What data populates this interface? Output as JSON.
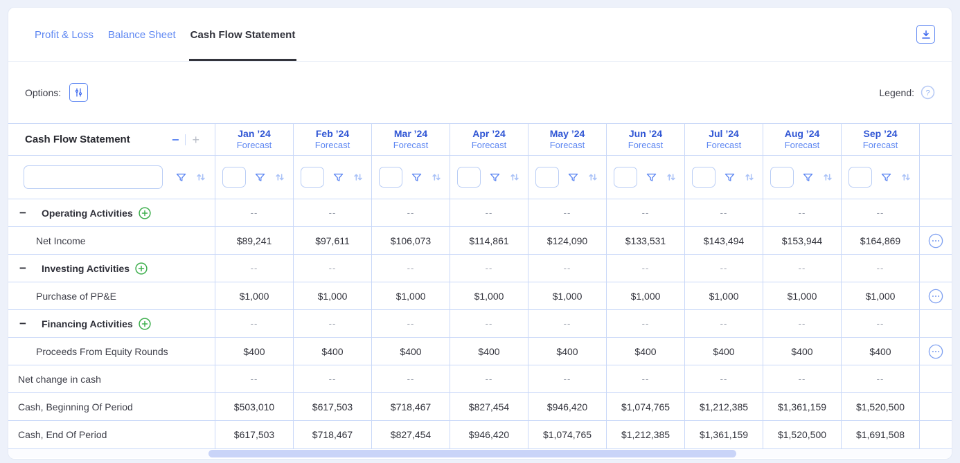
{
  "tabs": [
    {
      "label": "Profit & Loss",
      "active": false
    },
    {
      "label": "Balance Sheet",
      "active": false
    },
    {
      "label": "Cash Flow Statement",
      "active": true
    }
  ],
  "toolbar": {
    "options_label": "Options:",
    "legend_label": "Legend:"
  },
  "icons": {
    "export": "download-icon",
    "options": "sliders-icon",
    "legend_help": "question-mark-icon",
    "filter": "funnel-icon",
    "sort": "sort-arrows-icon",
    "row_actions": "ellipsis-icon",
    "add_row": "plus-circle-icon",
    "collapse_section": "minus-icon"
  },
  "table": {
    "title": "Cash Flow Statement",
    "collapse_label": "−",
    "expand_label": "+",
    "scenario_label": "Forecast",
    "empty_value": "--",
    "columns": [
      "Jan ’24",
      "Feb ’24",
      "Mar ’24",
      "Apr ’24",
      "May ’24",
      "Jun ’24",
      "Jul ’24",
      "Aug ’24",
      "Sep ’24"
    ],
    "rows": [
      {
        "label": "Operating Activities",
        "type": "section",
        "has_actions": false,
        "values": [
          "--",
          "--",
          "--",
          "--",
          "--",
          "--",
          "--",
          "--",
          "--"
        ]
      },
      {
        "label": "Net Income",
        "type": "detail",
        "has_actions": true,
        "values": [
          "$89,241",
          "$97,611",
          "$106,073",
          "$114,861",
          "$124,090",
          "$133,531",
          "$143,494",
          "$153,944",
          "$164,869"
        ]
      },
      {
        "label": "Investing Activities",
        "type": "section",
        "has_actions": false,
        "values": [
          "--",
          "--",
          "--",
          "--",
          "--",
          "--",
          "--",
          "--",
          "--"
        ]
      },
      {
        "label": "Purchase of PP&E",
        "type": "detail",
        "has_actions": true,
        "values": [
          "$1,000",
          "$1,000",
          "$1,000",
          "$1,000",
          "$1,000",
          "$1,000",
          "$1,000",
          "$1,000",
          "$1,000"
        ]
      },
      {
        "label": "Financing Activities",
        "type": "section",
        "has_actions": false,
        "values": [
          "--",
          "--",
          "--",
          "--",
          "--",
          "--",
          "--",
          "--",
          "--"
        ]
      },
      {
        "label": "Proceeds From Equity Rounds",
        "type": "detail",
        "has_actions": true,
        "values": [
          "$400",
          "$400",
          "$400",
          "$400",
          "$400",
          "$400",
          "$400",
          "$400",
          "$400"
        ]
      },
      {
        "label": "Net change in cash",
        "type": "summary",
        "has_actions": false,
        "values": [
          "--",
          "--",
          "--",
          "--",
          "--",
          "--",
          "--",
          "--",
          "--"
        ]
      },
      {
        "label": "Cash, Beginning Of Period",
        "type": "summary",
        "has_actions": false,
        "values": [
          "$503,010",
          "$617,503",
          "$718,467",
          "$827,454",
          "$946,420",
          "$1,074,765",
          "$1,212,385",
          "$1,361,159",
          "$1,520,500"
        ]
      },
      {
        "label": "Cash, End Of Period",
        "type": "summary",
        "has_actions": false,
        "values": [
          "$617,503",
          "$718,467",
          "$827,454",
          "$946,420",
          "$1,074,765",
          "$1,212,385",
          "$1,361,159",
          "$1,520,500",
          "$1,691,508"
        ]
      }
    ]
  },
  "colors": {
    "accent_blue": "#5e87f2",
    "month_header_blue": "#2f55d4",
    "active_tab_text": "#32333c",
    "grid_border": "#c9d8f8",
    "positive_green": "#3faf4e",
    "muted_dash": "#9aa0ac"
  }
}
